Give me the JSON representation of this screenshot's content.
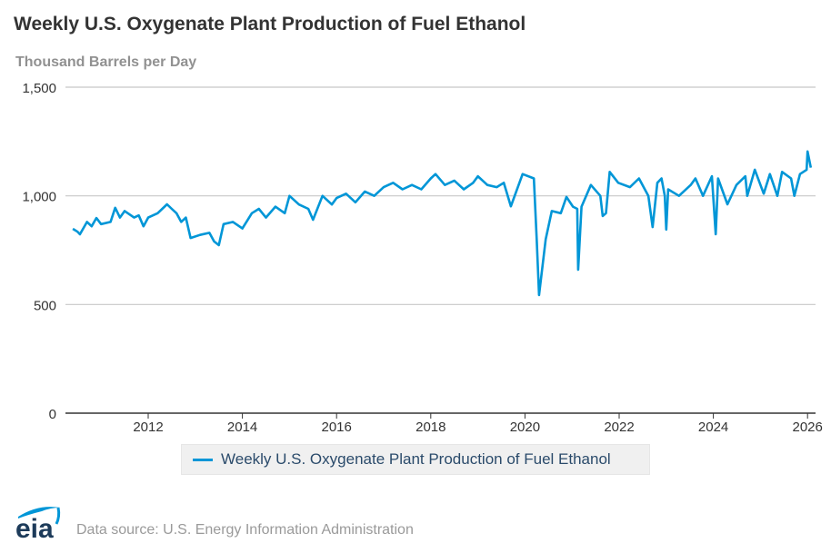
{
  "chart_data": {
    "type": "line",
    "title": "Weekly U.S. Oxygenate Plant Production of Fuel Ethanol",
    "ylabel": "Thousand Barrels per Day",
    "xlabel": "",
    "ylim": [
      0,
      1500
    ],
    "xlim": [
      2010.35,
      2026.1
    ],
    "yticks": [
      0,
      500,
      1000,
      1500
    ],
    "ytick_labels": [
      "0",
      "500",
      "1,000",
      "1,500"
    ],
    "xticks": [
      2012,
      2014,
      2016,
      2018,
      2020,
      2022,
      2024,
      2026
    ],
    "xtick_labels": [
      "2012",
      "2014",
      "2016",
      "2018",
      "2020",
      "2022",
      "2024",
      "2026"
    ],
    "grid": "horizontal",
    "legend_position": "bottom",
    "color": "#0096d7",
    "series": [
      {
        "name": "Weekly U.S. Oxygenate Plant Production of Fuel Ethanol",
        "points": [
          [
            2010.4,
            848
          ],
          [
            2010.5,
            835
          ],
          [
            2010.55,
            823
          ],
          [
            2010.7,
            880
          ],
          [
            2010.8,
            860
          ],
          [
            2010.9,
            898
          ],
          [
            2011.0,
            870
          ],
          [
            2011.2,
            880
          ],
          [
            2011.3,
            945
          ],
          [
            2011.4,
            900
          ],
          [
            2011.5,
            930
          ],
          [
            2011.7,
            900
          ],
          [
            2011.8,
            910
          ],
          [
            2011.9,
            860
          ],
          [
            2012.0,
            900
          ],
          [
            2012.2,
            920
          ],
          [
            2012.4,
            961
          ],
          [
            2012.5,
            940
          ],
          [
            2012.6,
            920
          ],
          [
            2012.7,
            880
          ],
          [
            2012.8,
            900
          ],
          [
            2012.9,
            806
          ],
          [
            2013.1,
            820
          ],
          [
            2013.3,
            830
          ],
          [
            2013.4,
            790
          ],
          [
            2013.5,
            773
          ],
          [
            2013.6,
            870
          ],
          [
            2013.8,
            880
          ],
          [
            2014.0,
            850
          ],
          [
            2014.2,
            920
          ],
          [
            2014.35,
            940
          ],
          [
            2014.5,
            900
          ],
          [
            2014.7,
            950
          ],
          [
            2014.9,
            920
          ],
          [
            2015.0,
            1000
          ],
          [
            2015.2,
            960
          ],
          [
            2015.4,
            940
          ],
          [
            2015.5,
            890
          ],
          [
            2015.7,
            1000
          ],
          [
            2015.9,
            960
          ],
          [
            2016.0,
            990
          ],
          [
            2016.2,
            1010
          ],
          [
            2016.4,
            970
          ],
          [
            2016.6,
            1020
          ],
          [
            2016.8,
            1000
          ],
          [
            2017.0,
            1040
          ],
          [
            2017.2,
            1060
          ],
          [
            2017.4,
            1030
          ],
          [
            2017.6,
            1050
          ],
          [
            2017.8,
            1030
          ],
          [
            2018.0,
            1080
          ],
          [
            2018.1,
            1100
          ],
          [
            2018.3,
            1050
          ],
          [
            2018.5,
            1070
          ],
          [
            2018.7,
            1030
          ],
          [
            2018.9,
            1060
          ],
          [
            2019.0,
            1090
          ],
          [
            2019.2,
            1050
          ],
          [
            2019.4,
            1040
          ],
          [
            2019.55,
            1060
          ],
          [
            2019.7,
            952
          ],
          [
            2019.95,
            1100
          ],
          [
            2020.19,
            1080
          ],
          [
            2020.25,
            800
          ],
          [
            2020.3,
            543
          ],
          [
            2020.44,
            800
          ],
          [
            2020.57,
            930
          ],
          [
            2020.76,
            920
          ],
          [
            2020.88,
            995
          ],
          [
            2021.02,
            950
          ],
          [
            2021.11,
            940
          ],
          [
            2021.13,
            660
          ],
          [
            2021.2,
            950
          ],
          [
            2021.4,
            1050
          ],
          [
            2021.6,
            1000
          ],
          [
            2021.65,
            907
          ],
          [
            2021.72,
            920
          ],
          [
            2021.8,
            1110
          ],
          [
            2021.98,
            1060
          ],
          [
            2022.23,
            1040
          ],
          [
            2022.42,
            1080
          ],
          [
            2022.62,
            1000
          ],
          [
            2022.71,
            856
          ],
          [
            2022.81,
            1060
          ],
          [
            2022.9,
            1080
          ],
          [
            2022.97,
            1000
          ],
          [
            2023.0,
            845
          ],
          [
            2023.04,
            1030
          ],
          [
            2023.27,
            1000
          ],
          [
            2023.52,
            1050
          ],
          [
            2023.62,
            1080
          ],
          [
            2023.78,
            1000
          ],
          [
            2023.97,
            1090
          ],
          [
            2024.05,
            823
          ],
          [
            2024.1,
            1080
          ],
          [
            2024.3,
            961
          ],
          [
            2024.49,
            1050
          ],
          [
            2024.68,
            1090
          ],
          [
            2024.72,
            1000
          ],
          [
            2024.88,
            1120
          ],
          [
            2025.07,
            1010
          ],
          [
            2025.2,
            1100
          ],
          [
            2025.36,
            1000
          ],
          [
            2025.46,
            1110
          ],
          [
            2025.65,
            1080
          ],
          [
            2025.72,
            1000
          ],
          [
            2025.84,
            1100
          ],
          [
            2025.98,
            1120
          ],
          [
            2026.0,
            1204
          ],
          [
            2026.07,
            1130
          ]
        ]
      }
    ]
  },
  "footer": {
    "logo_text": "eia",
    "source": "Data source: U.S. Energy Information Administration"
  }
}
